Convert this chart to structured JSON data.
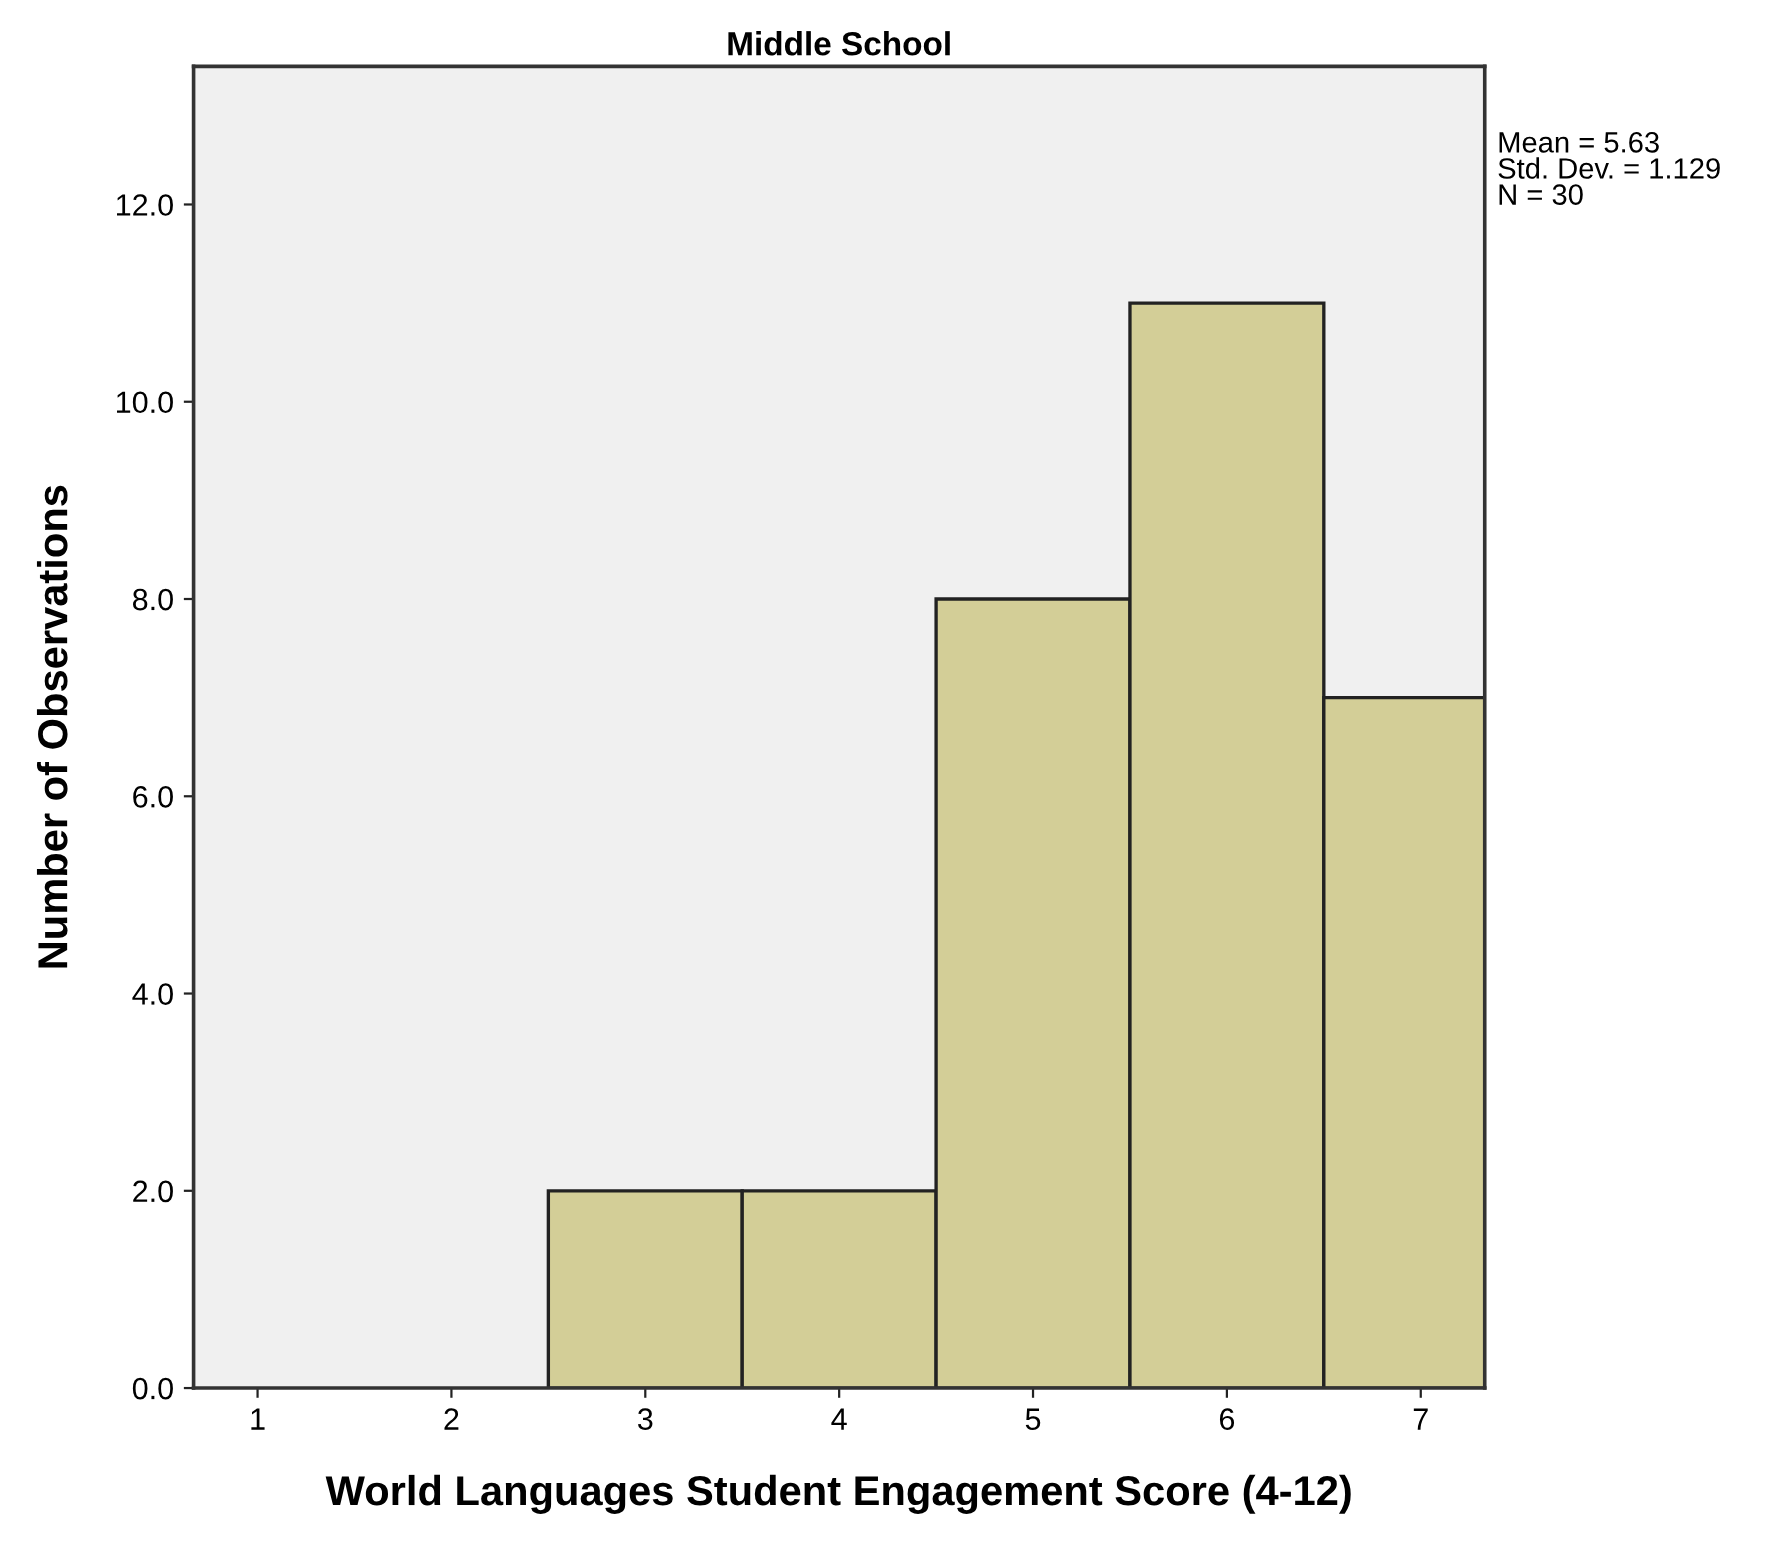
{
  "chart_data": {
    "type": "histogram",
    "title": "Middle School",
    "xlabel": "World Languages Student Engagement Score (4-12)",
    "ylabel": "Number of Observations",
    "bins": [
      2.5,
      3.5,
      4.5,
      5.5,
      6.5,
      7.33
    ],
    "values": [
      2,
      2,
      8,
      11,
      7
    ],
    "color": "#d3ce97",
    "xlim": [
      0.67,
      7.33
    ],
    "xticks": [
      1,
      2,
      3,
      4,
      5,
      6,
      7
    ],
    "ylim": [
      0,
      13.4
    ],
    "yticks": [
      {
        "value": 0,
        "label": "0.0"
      },
      {
        "value": 2,
        "label": "2.0"
      },
      {
        "value": 4,
        "label": "4.0"
      },
      {
        "value": 6,
        "label": "6.0"
      },
      {
        "value": 8,
        "label": "8.0"
      },
      {
        "value": 10,
        "label": "10.0"
      },
      {
        "value": 12,
        "label": "12.0"
      }
    ],
    "grid": false,
    "annotations": [
      "Mean = 5.63\nStd. Dev. = 1.129\nN = 30"
    ]
  }
}
